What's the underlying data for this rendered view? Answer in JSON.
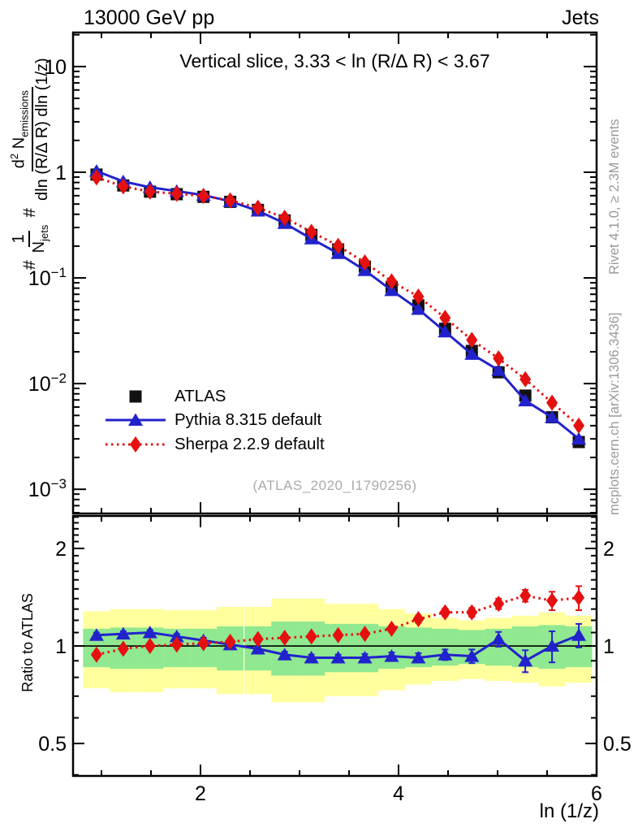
{
  "header": {
    "collision_label": "13000 GeV pp",
    "analysis_label": "Jets"
  },
  "right_margin": {
    "rivet_label": "Rivet 4.1.0, ≥ 2.3M events",
    "mcplots_label": "mcplots.cern.ch [arXiv:1306.3436]"
  },
  "watermark": {
    "text": "(ATLAS_2020_I1790256)"
  },
  "ylabel_parts": {
    "hash1": "#",
    "frac1_num": "1",
    "frac1_den": "N",
    "frac1_den_sub": "jets",
    "hash2": "#",
    "frac2_num_d": "d",
    "frac2_num_sup": "2",
    "frac2_num_N": " N",
    "frac2_num_sub": "emissions",
    "frac2_den": "dln (R/∆ R) dln (1/z)"
  },
  "chart_data": {
    "type": "line",
    "title": "Vertical slice, 3.33 < ln (R/∆ R) < 3.67",
    "xlabel": "ln (1/z)",
    "ratio_ylabel": "Ratio to ATLAS",
    "x_range": [
      0.713,
      6.0
    ],
    "y_range_main": [
      0.00059,
      21.0
    ],
    "y_scale_main": "log10",
    "ratio_range": [
      0.397,
      2.52
    ],
    "ratio_scale": "log2",
    "x_major_ticks": [
      {
        "v": 2,
        "label": "2"
      },
      {
        "v": 4,
        "label": "4"
      },
      {
        "v": 6,
        "label": "6"
      }
    ],
    "x_minor_ticks": [
      1,
      1.5,
      2.5,
      3,
      3.5,
      4.5,
      5,
      5.5
    ],
    "y_major_ticks": [
      {
        "v": 10,
        "label": "10"
      },
      {
        "v": 1,
        "label": "1"
      },
      {
        "v": 0.1,
        "label": "10^{−1}"
      },
      {
        "v": 0.01,
        "label": "10^{−2}"
      },
      {
        "v": 0.001,
        "label": "10^{−3}"
      }
    ],
    "ratio_major_ticks": [
      {
        "v": 2,
        "label": "2"
      },
      {
        "v": 1,
        "label": "1"
      },
      {
        "v": 0.5,
        "label": "0.5"
      }
    ],
    "ratio_minor_ticks": [
      0.4,
      0.6,
      0.7,
      0.8,
      0.9,
      1.1,
      1.2,
      1.3,
      1.4,
      1.5,
      1.6,
      1.7,
      1.8,
      1.9,
      2.1,
      2.2,
      2.3,
      2.4,
      2.5
    ],
    "x": [
      0.95,
      1.22,
      1.49,
      1.76,
      2.03,
      2.3,
      2.58,
      2.85,
      3.12,
      3.39,
      3.66,
      3.93,
      4.2,
      4.47,
      4.74,
      5.01,
      5.28,
      5.55,
      5.82
    ],
    "series": [
      {
        "name": "ATLAS",
        "color": "#111111",
        "marker": "square",
        "line": "none",
        "values": [
          0.95,
          0.75,
          0.655,
          0.62,
          0.585,
          0.525,
          0.44,
          0.35,
          0.255,
          0.186,
          0.128,
          0.082,
          0.055,
          0.033,
          0.0204,
          0.0128,
          0.0077,
          0.0048,
          0.0028
        ],
        "rel_err": [
          0.05,
          0.03,
          0.025,
          0.025,
          0.025,
          0.025,
          0.025,
          0.025,
          0.025,
          0.025,
          0.03,
          0.03,
          0.035,
          0.04,
          0.045,
          0.05,
          0.06,
          0.08,
          0.1
        ]
      },
      {
        "name": "Pythia 8.315 default",
        "color": "#2222cc",
        "marker": "triangle",
        "line": "solid",
        "values": [
          1.026,
          0.818,
          0.721,
          0.663,
          0.608,
          0.53,
          0.431,
          0.329,
          0.235,
          0.171,
          0.118,
          0.0763,
          0.0506,
          0.031,
          0.019,
          0.0134,
          0.0069,
          0.0048,
          0.003
        ],
        "rel_err": [
          0.02,
          0.02,
          0.02,
          0.02,
          0.02,
          0.02,
          0.02,
          0.02,
          0.02,
          0.02,
          0.02,
          0.025,
          0.03,
          0.035,
          0.04,
          0.05,
          0.06,
          0.1,
          0.09
        ]
      },
      {
        "name": "Sherpa 2.2.9 default",
        "color": "#e51010",
        "marker": "diamond",
        "line": "dotted",
        "values": [
          0.893,
          0.735,
          0.655,
          0.626,
          0.597,
          0.541,
          0.462,
          0.371,
          0.273,
          0.201,
          0.14,
          0.0927,
          0.0666,
          0.0419,
          0.0259,
          0.0173,
          0.011,
          0.0066,
          0.004
        ],
        "rel_err": [
          0.02,
          0.02,
          0.02,
          0.02,
          0.02,
          0.02,
          0.02,
          0.02,
          0.02,
          0.02,
          0.02,
          0.025,
          0.03,
          0.035,
          0.04,
          0.05,
          0.06,
          0.09,
          0.12
        ]
      }
    ],
    "ratio": {
      "baseline": 1,
      "series": [
        {
          "name": "Pythia 8.315 default",
          "color": "#2222cc",
          "marker": "triangle",
          "line": "solid",
          "values": [
            1.08,
            1.09,
            1.1,
            1.07,
            1.04,
            1.01,
            0.98,
            0.94,
            0.92,
            0.92,
            0.92,
            0.93,
            0.92,
            0.94,
            0.93,
            1.05,
            0.9,
            1.0,
            1.08
          ],
          "err": [
            0.02,
            0.02,
            0.02,
            0.02,
            0.02,
            0.02,
            0.02,
            0.02,
            0.02,
            0.02,
            0.025,
            0.025,
            0.03,
            0.035,
            0.045,
            0.055,
            0.07,
            0.11,
            0.09
          ]
        },
        {
          "name": "Sherpa 2.2.9 default",
          "color": "#e51010",
          "marker": "diamond",
          "line": "dotted",
          "values": [
            0.94,
            0.98,
            1.0,
            1.01,
            1.02,
            1.03,
            1.05,
            1.06,
            1.07,
            1.08,
            1.09,
            1.13,
            1.21,
            1.27,
            1.27,
            1.35,
            1.43,
            1.38,
            1.41
          ],
          "err": [
            0.02,
            0.02,
            0.02,
            0.02,
            0.02,
            0.02,
            0.02,
            0.02,
            0.02,
            0.02,
            0.02,
            0.025,
            0.03,
            0.035,
            0.04,
            0.05,
            0.06,
            0.09,
            0.12
          ]
        }
      ],
      "bands": {
        "bin_half_width": 0.1355,
        "yellow": {
          "color": "#ffff9e",
          "hi": [
            1.28,
            1.3,
            1.3,
            1.29,
            1.29,
            1.32,
            1.32,
            1.4,
            1.4,
            1.35,
            1.35,
            1.3,
            1.26,
            1.22,
            1.2,
            1.22,
            1.24,
            1.27,
            1.24
          ],
          "lo": [
            0.74,
            0.72,
            0.72,
            0.74,
            0.74,
            0.71,
            0.71,
            0.67,
            0.67,
            0.7,
            0.7,
            0.73,
            0.76,
            0.78,
            0.79,
            0.78,
            0.77,
            0.75,
            0.77
          ]
        },
        "green": {
          "color": "#90e890",
          "hi": [
            1.13,
            1.14,
            1.14,
            1.13,
            1.13,
            1.15,
            1.15,
            1.19,
            1.19,
            1.17,
            1.17,
            1.15,
            1.14,
            1.13,
            1.12,
            1.13,
            1.15,
            1.16,
            1.15
          ],
          "lo": [
            0.86,
            0.85,
            0.85,
            0.86,
            0.86,
            0.84,
            0.84,
            0.81,
            0.81,
            0.83,
            0.83,
            0.85,
            0.86,
            0.87,
            0.88,
            0.87,
            0.86,
            0.85,
            0.86
          ]
        }
      }
    }
  }
}
